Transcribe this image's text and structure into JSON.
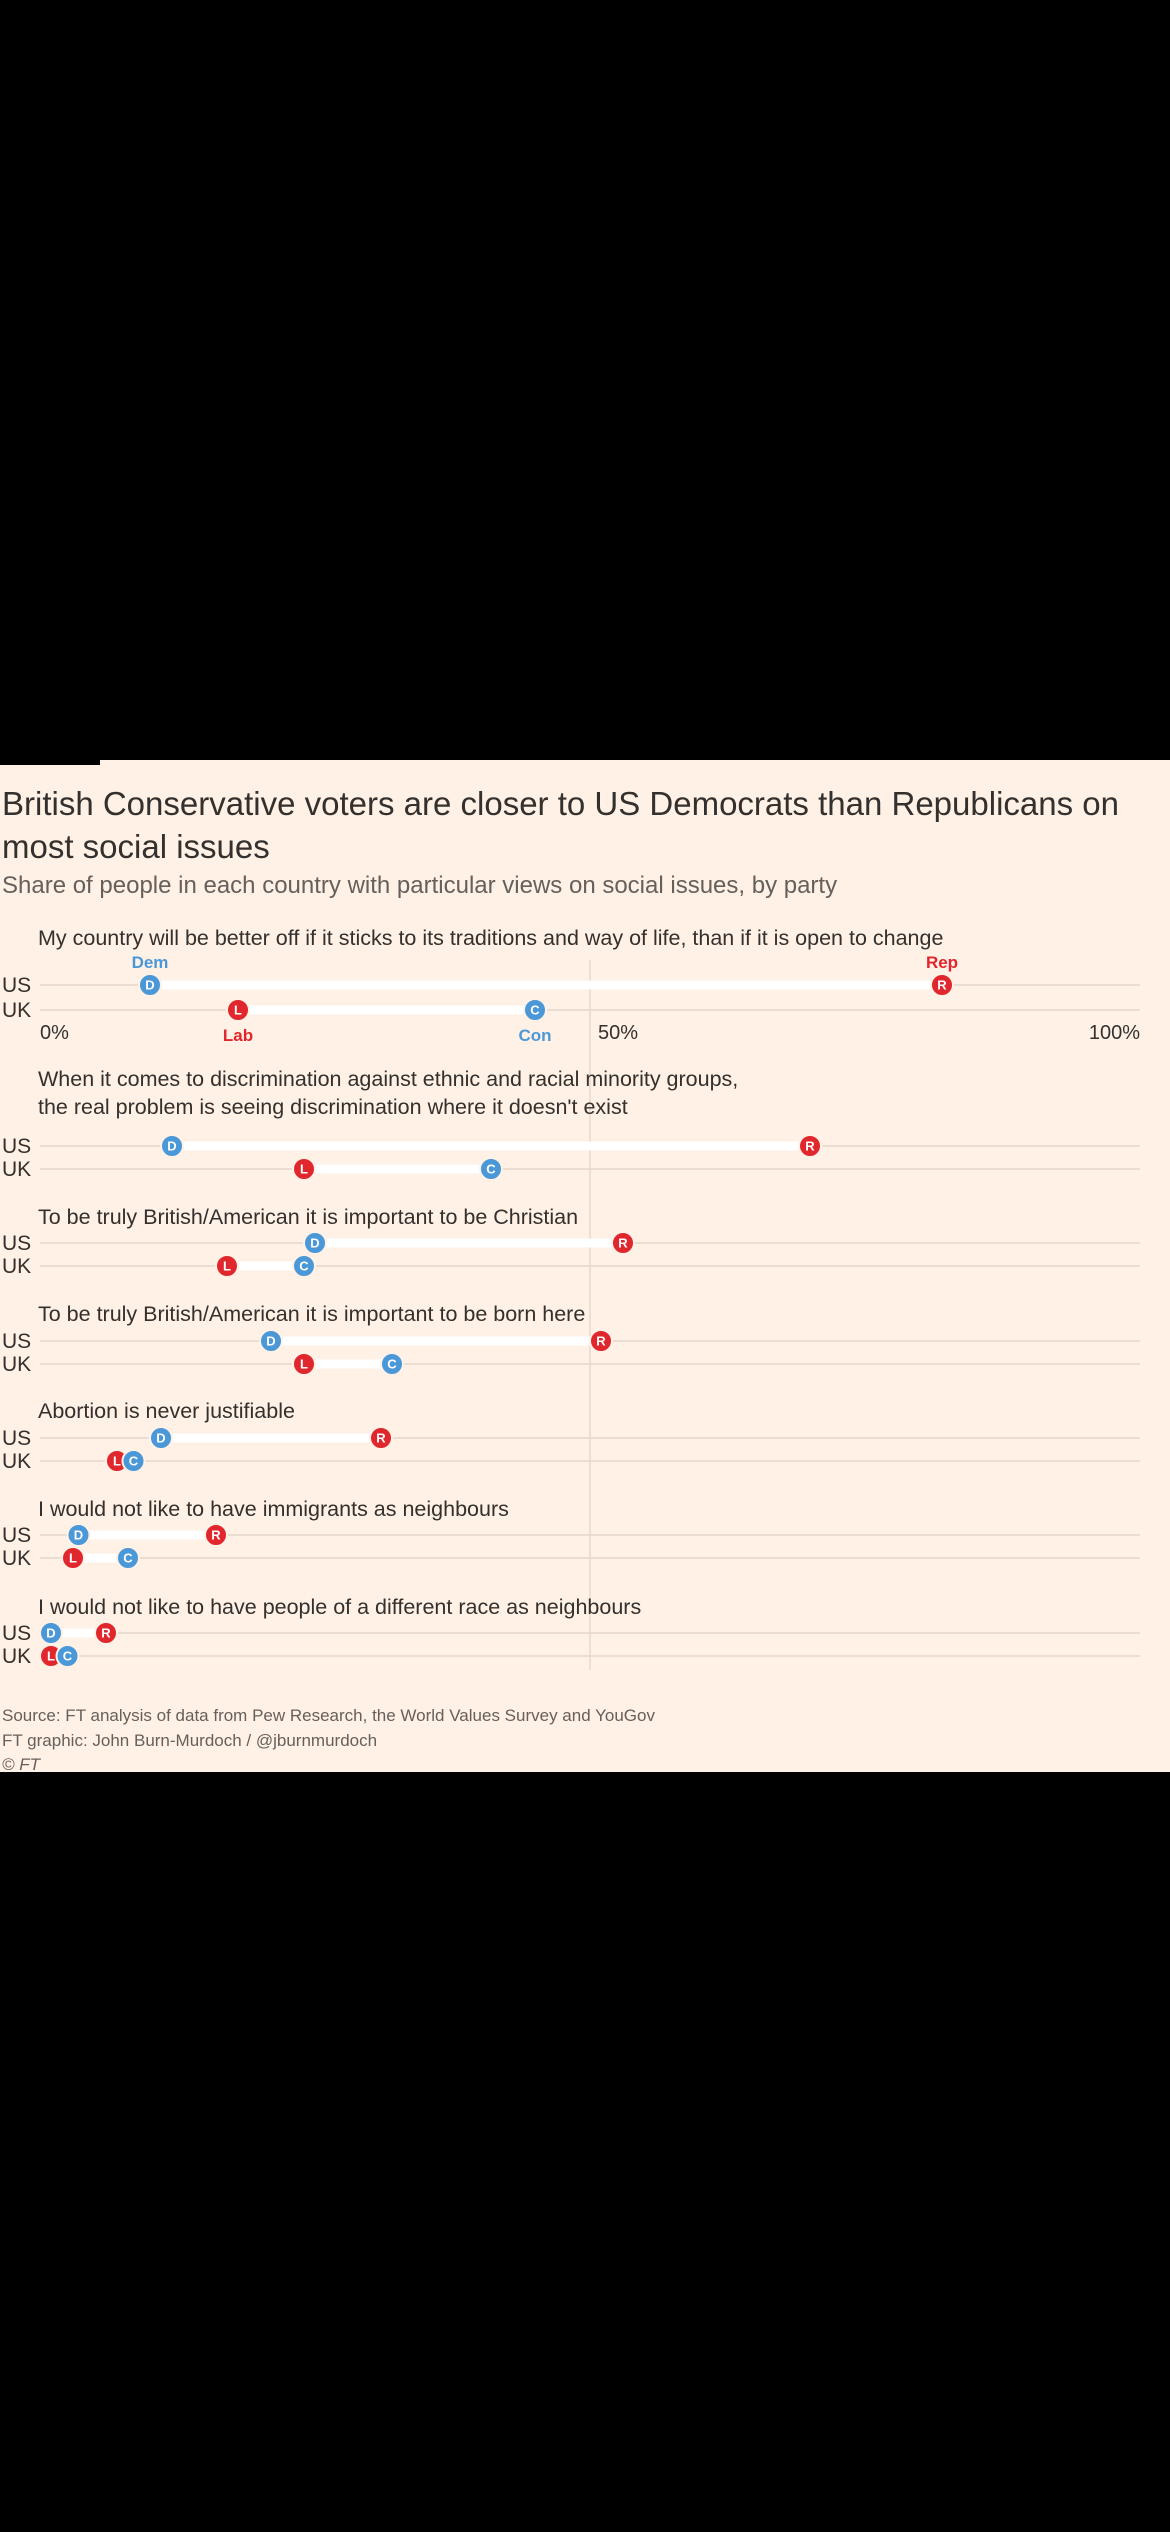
{
  "title": "British Conservative voters are closer to US Democrats than Republicans on most social issues",
  "subtitle": "Share of people in each country with particular views on social issues, by party",
  "colors": {
    "background": "#fff1e5",
    "dem": "#4a98d8",
    "rep": "#e0272d",
    "lab": "#e0272d",
    "con": "#4a98d8",
    "text": "#33302e",
    "track": "#ffffff"
  },
  "chart_data": {
    "type": "dumbbell",
    "xlim": [
      0,
      100
    ],
    "tick_labels": [
      "0%",
      "50%",
      "100%"
    ],
    "ticks": [
      0,
      50,
      100
    ],
    "row_labels": {
      "us": "US",
      "uk": "UK"
    },
    "party_labels": {
      "dem": "Dem",
      "rep": "Rep",
      "lab": "Lab",
      "con": "Con"
    },
    "markers": {
      "dem": "D",
      "rep": "R",
      "lab": "L",
      "con": "C"
    },
    "questions": [
      {
        "text": [
          "My country will be better off if it sticks to its traditions and way of life, than if it is open to change"
        ],
        "us": {
          "dem": 10,
          "rep": 82
        },
        "uk": {
          "lab": 18,
          "con": 45
        }
      },
      {
        "text": [
          "When it comes to discrimination against ethnic and racial minority groups,",
          "the real problem is seeing discrimination where it doesn't exist"
        ],
        "us": {
          "dem": 12,
          "rep": 70
        },
        "uk": {
          "lab": 24,
          "con": 41
        }
      },
      {
        "text": [
          "To be truly British/American it is important to be Christian"
        ],
        "us": {
          "dem": 25,
          "rep": 53
        },
        "uk": {
          "lab": 17,
          "con": 24
        }
      },
      {
        "text": [
          "To be truly British/American it is important to be born here"
        ],
        "us": {
          "dem": 21,
          "rep": 51
        },
        "uk": {
          "lab": 24,
          "con": 32
        }
      },
      {
        "text": [
          "Abortion is never justifiable"
        ],
        "us": {
          "dem": 11,
          "rep": 31
        },
        "uk": {
          "lab": 7,
          "con": 8.5
        }
      },
      {
        "text": [
          "I would not like to have immigrants as neighbours"
        ],
        "us": {
          "dem": 3.5,
          "rep": 16
        },
        "uk": {
          "lab": 3,
          "con": 8
        }
      },
      {
        "text": [
          "I would not like to have people of a different race as neighbours"
        ],
        "us": {
          "dem": 1,
          "rep": 6
        },
        "uk": {
          "lab": 1,
          "con": 2.5
        }
      }
    ]
  },
  "source": {
    "line1": "Source: FT analysis of data from Pew Research, the World Values Survey and YouGov",
    "line2": "FT graphic: John Burn-Murdoch / @jburnmurdoch",
    "line3": "© FT"
  }
}
